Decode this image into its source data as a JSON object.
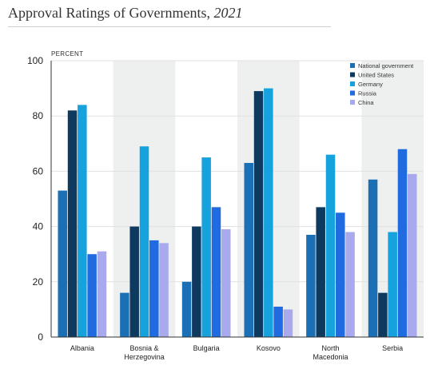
{
  "header": {
    "title_text": "Approval Ratings of Governments,",
    "title_year": "2021"
  },
  "chart_data": {
    "type": "bar",
    "unit_label": "PERCENT",
    "categories": [
      [
        "Albania"
      ],
      [
        "Bosnia &",
        "Herzegovina"
      ],
      [
        "Bulgaria"
      ],
      [
        "Kosovo"
      ],
      [
        "North",
        "Macedonia"
      ],
      [
        "Serbia"
      ]
    ],
    "series": [
      {
        "name": "National government",
        "color": "#1a6fb5",
        "values": [
          53,
          16,
          20,
          63,
          37,
          57
        ]
      },
      {
        "name": "United States",
        "color": "#0f3a5f",
        "values": [
          82,
          40,
          40,
          89,
          47,
          16
        ]
      },
      {
        "name": "Germany",
        "color": "#16a2dc",
        "values": [
          84,
          69,
          65,
          90,
          66,
          38
        ]
      },
      {
        "name": "Russia",
        "color": "#1f6bdf",
        "values": [
          30,
          35,
          47,
          11,
          45,
          68
        ]
      },
      {
        "name": "China",
        "color": "#a9a9ee",
        "values": [
          31,
          34,
          39,
          10,
          38,
          59
        ]
      }
    ],
    "ylim": [
      0,
      100
    ],
    "yticks": [
      0,
      20,
      40,
      60,
      80,
      100
    ],
    "grid": true,
    "legend_position": "top-right",
    "band_color": "#eef0ef"
  }
}
